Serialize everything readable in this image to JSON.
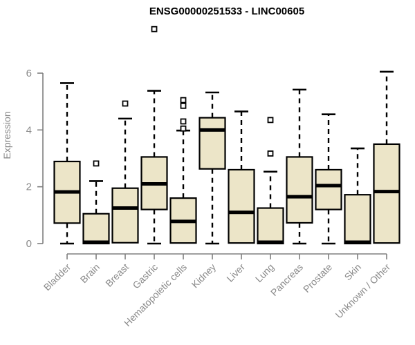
{
  "title": "ENSG00000251533 - LINC00605",
  "colors": {
    "box_fill": "#ece5c8",
    "box_border": "#000000",
    "median": "#000000",
    "whisker": "#000000",
    "outlier_stroke": "#000000",
    "axis": "#7e7e7e",
    "axis_text": "#8a8a8a",
    "title_text": "#000000",
    "background": "#ffffff"
  },
  "chart_data": {
    "type": "boxplot",
    "title": "ENSG00000251533 - LINC00605",
    "xlabel": "",
    "ylabel": "Expression",
    "ylim": [
      0,
      6
    ],
    "yticks": [
      0,
      2,
      4,
      6
    ],
    "grid": false,
    "legend": "none",
    "categories": [
      "Bladder",
      "Brain",
      "Breast",
      "Gastric",
      "Hematopoietic cells",
      "Kidney",
      "Liver",
      "Lung",
      "Pancreas",
      "Prostate",
      "Skin",
      "Unknown / Other"
    ],
    "series": [
      {
        "name": "Bladder",
        "whisker_low": 0,
        "q1": 0.72,
        "median": 1.82,
        "q3": 2.89,
        "whisker_high": 5.65,
        "outliers": []
      },
      {
        "name": "Brain",
        "whisker_low": 0,
        "q1": 0,
        "median": 0.05,
        "q3": 1.05,
        "whisker_high": 2.2,
        "outliers": [
          2.82
        ]
      },
      {
        "name": "Breast",
        "whisker_low": 0.03,
        "q1": 0.03,
        "median": 1.25,
        "q3": 1.95,
        "whisker_high": 4.4,
        "outliers": [
          4.93
        ]
      },
      {
        "name": "Gastric",
        "whisker_low": 0,
        "q1": 1.2,
        "median": 2.1,
        "q3": 3.05,
        "whisker_high": 5.38,
        "outliers": [
          7.55
        ]
      },
      {
        "name": "Hematopoietic cells",
        "whisker_low": 0.02,
        "q1": 0.02,
        "median": 0.78,
        "q3": 1.6,
        "whisker_high": 3.98,
        "outliers": [
          4.05,
          4.3,
          4.85,
          5.05
        ]
      },
      {
        "name": "Kidney",
        "whisker_low": 0,
        "q1": 2.63,
        "median": 4.0,
        "q3": 4.43,
        "whisker_high": 5.32,
        "outliers": []
      },
      {
        "name": "Liver",
        "whisker_low": 0.02,
        "q1": 0.02,
        "median": 1.1,
        "q3": 2.6,
        "whisker_high": 4.65,
        "outliers": []
      },
      {
        "name": "Lung",
        "whisker_low": 0,
        "q1": 0,
        "median": 0.05,
        "q3": 1.25,
        "whisker_high": 2.53,
        "outliers": [
          3.17,
          4.35
        ]
      },
      {
        "name": "Pancreas",
        "whisker_low": 0,
        "q1": 0.73,
        "median": 1.65,
        "q3": 3.05,
        "whisker_high": 5.42,
        "outliers": []
      },
      {
        "name": "Prostate",
        "whisker_low": 0,
        "q1": 1.2,
        "median": 2.04,
        "q3": 2.6,
        "whisker_high": 4.55,
        "outliers": []
      },
      {
        "name": "Skin",
        "whisker_low": 0,
        "q1": 0,
        "median": 0.05,
        "q3": 1.72,
        "whisker_high": 3.35,
        "outliers": []
      },
      {
        "name": "Unknown / Other",
        "whisker_low": 0.02,
        "q1": 0.02,
        "median": 1.83,
        "q3": 3.5,
        "whisker_high": 6.05,
        "outliers": []
      }
    ]
  }
}
